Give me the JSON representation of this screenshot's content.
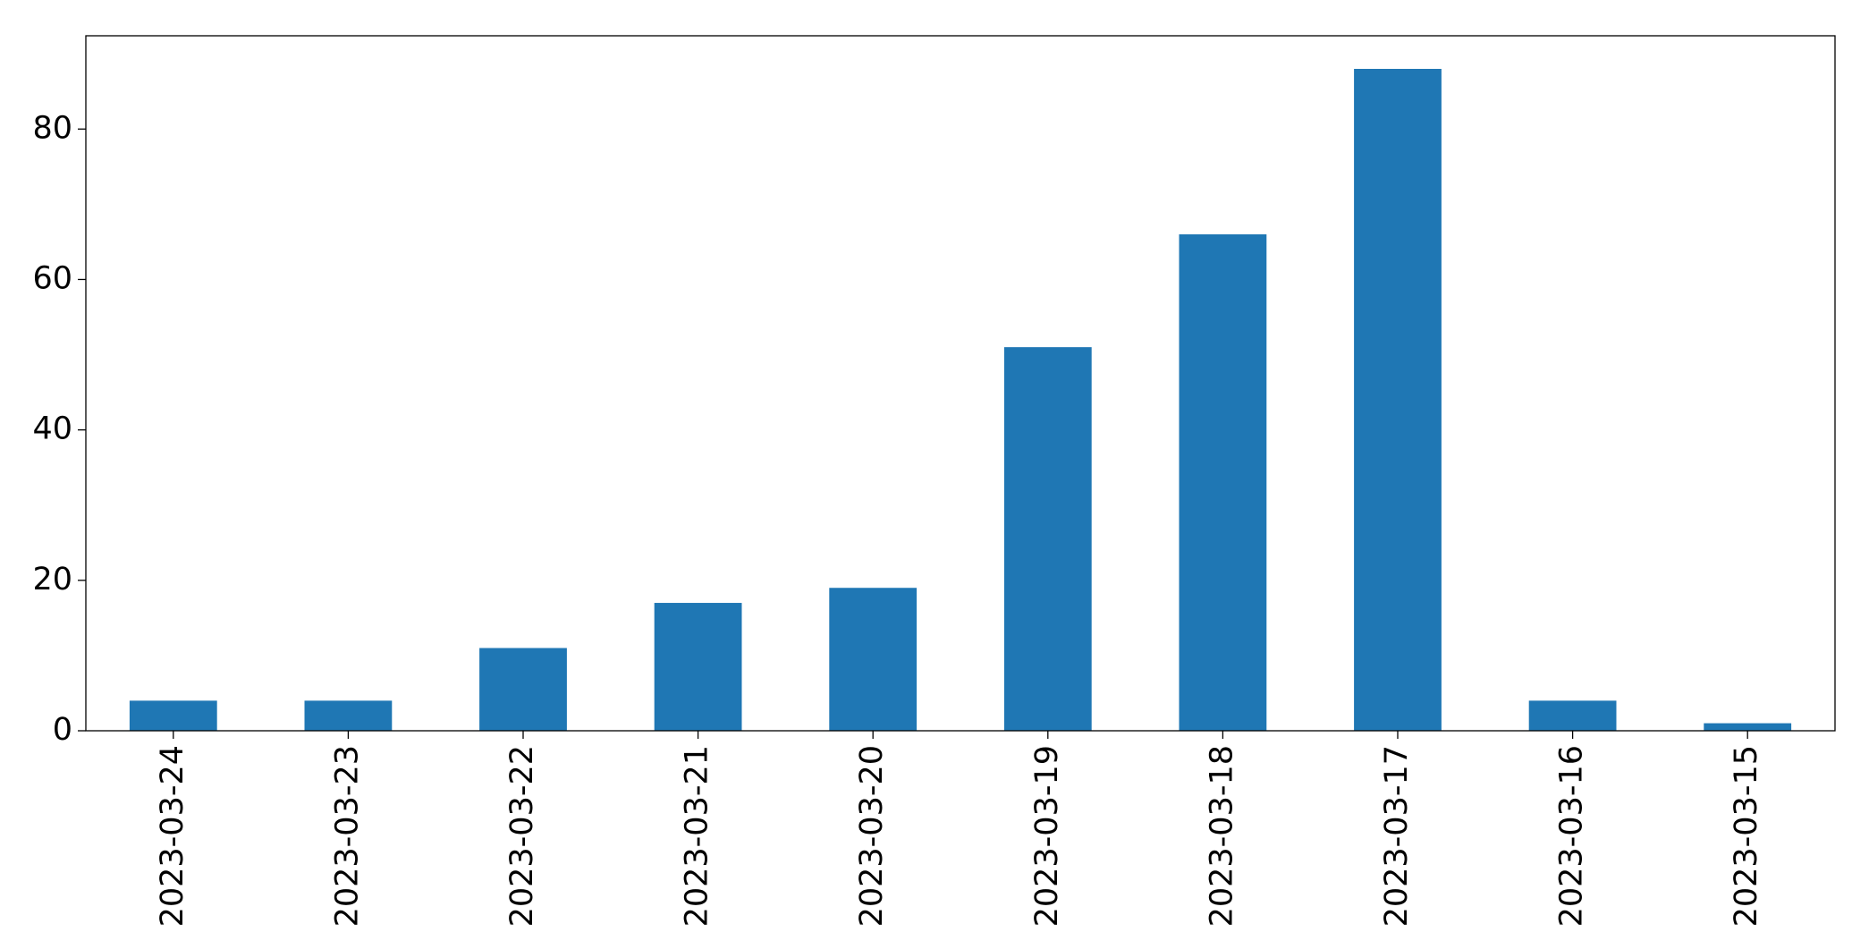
{
  "chart_data": {
    "type": "bar",
    "categories": [
      "2023-03-24",
      "2023-03-23",
      "2023-03-22",
      "2023-03-21",
      "2023-03-20",
      "2023-03-19",
      "2023-03-18",
      "2023-03-17",
      "2023-03-16",
      "2023-03-15"
    ],
    "values": [
      4,
      4,
      11,
      17,
      19,
      51,
      66,
      88,
      4,
      1
    ],
    "color": "#1f77b4",
    "ylim": [
      0,
      92.4
    ],
    "yticks": [
      0,
      20,
      40,
      60,
      80
    ],
    "grid": false
  }
}
